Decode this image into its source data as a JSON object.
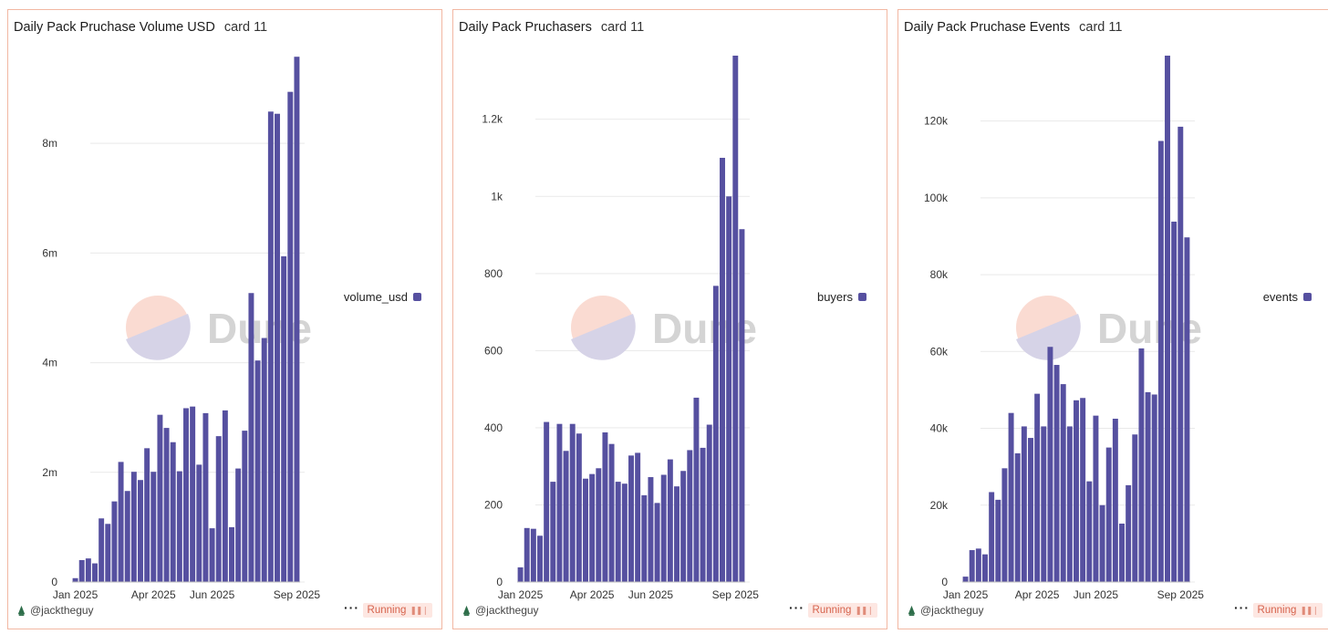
{
  "watermark": "Dune",
  "colors": {
    "bar": "#5650a0",
    "border": "#f2b7a2",
    "grid": "#e9e9e9"
  },
  "chart_data": [
    {
      "type": "bar",
      "title": "Daily Pack Pruchase Volume USD",
      "subtitle": "card 11",
      "author": "@jacktheguy",
      "status": "Running",
      "legend": "volume_usd",
      "ylim": [
        0,
        9600000
      ],
      "yticks": [
        0,
        2000000,
        4000000,
        6000000,
        8000000
      ],
      "ytick_labels": [
        "0",
        "2m",
        "4m",
        "6m",
        "8m"
      ],
      "xtick_labels": [
        "Jan 2025",
        "Apr 2025",
        "Jun 2025",
        "Sep 2025"
      ],
      "xtick_index": [
        0,
        12,
        21,
        34
      ],
      "values": [
        70000,
        400000,
        430000,
        340000,
        1160000,
        1060000,
        1470000,
        2190000,
        1660000,
        2010000,
        1860000,
        2440000,
        2010000,
        3050000,
        2810000,
        2550000,
        2020000,
        3170000,
        3200000,
        2140000,
        3080000,
        980000,
        2660000,
        3130000,
        1000000,
        2070000,
        2760000,
        5270000,
        4040000,
        4450000,
        8580000,
        8540000,
        5940000,
        8940000,
        9580000
      ]
    },
    {
      "type": "bar",
      "title": "Daily Pack Pruchasers",
      "subtitle": "card 11",
      "author": "@jacktheguy",
      "status": "Running",
      "legend": "buyers",
      "ylim": [
        0,
        1365
      ],
      "yticks": [
        0,
        200,
        400,
        600,
        800,
        1000,
        1200
      ],
      "ytick_labels": [
        "0",
        "200",
        "400",
        "600",
        "800",
        "1k",
        "1.2k"
      ],
      "xtick_labels": [
        "Jan 2025",
        "Apr 2025",
        "Jun 2025",
        "Sep 2025"
      ],
      "xtick_index": [
        0,
        11,
        20,
        33
      ],
      "values": [
        38,
        140,
        138,
        120,
        415,
        260,
        410,
        340,
        410,
        385,
        268,
        280,
        295,
        388,
        358,
        260,
        255,
        328,
        335,
        225,
        272,
        205,
        278,
        318,
        248,
        288,
        342,
        478,
        348,
        408,
        768,
        1100,
        1000,
        1365,
        915
      ]
    },
    {
      "type": "bar",
      "title": "Daily Pack Pruchase Events",
      "subtitle": "card 11",
      "author": "@jacktheguy",
      "status": "Running",
      "legend": "events",
      "ylim": [
        0,
        137000
      ],
      "yticks": [
        0,
        20000,
        40000,
        60000,
        80000,
        100000,
        120000
      ],
      "ytick_labels": [
        "0",
        "20k",
        "40k",
        "60k",
        "80k",
        "100k",
        "120k"
      ],
      "xtick_labels": [
        "Jan 2025",
        "Apr 2025",
        "Jun 2025",
        "Sep 2025"
      ],
      "xtick_index": [
        0,
        11,
        20,
        33
      ],
      "values": [
        1400,
        8300,
        8700,
        7200,
        23400,
        21400,
        29600,
        44000,
        33500,
        40500,
        37500,
        49000,
        40500,
        61200,
        56500,
        51500,
        40500,
        47300,
        47900,
        26200,
        43300,
        20000,
        35000,
        42500,
        15200,
        25200,
        38400,
        60800,
        49400,
        48800,
        114800,
        137000,
        93800,
        118500,
        89700
      ]
    }
  ]
}
